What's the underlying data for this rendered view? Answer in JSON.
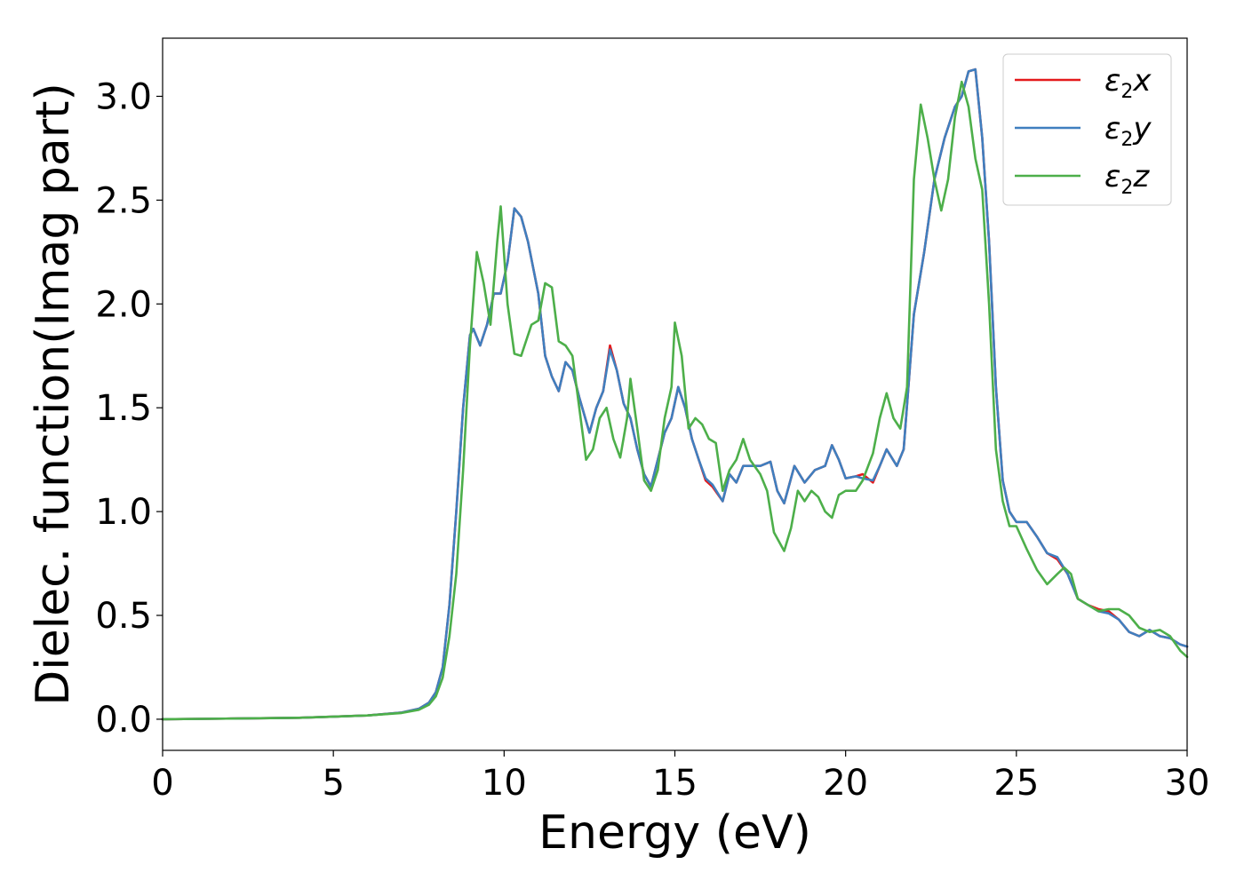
{
  "chart_data": {
    "type": "line",
    "title": "",
    "xlabel": "Energy (eV)",
    "ylabel": "Dielec. function(Imag part)",
    "xlim": [
      0,
      30
    ],
    "ylim": [
      -0.15,
      3.28
    ],
    "xticks": [
      0,
      5,
      10,
      15,
      20,
      25,
      30
    ],
    "xtick_labels": [
      "0",
      "5",
      "10",
      "15",
      "20",
      "25",
      "30"
    ],
    "yticks": [
      0.0,
      0.5,
      1.0,
      1.5,
      2.0,
      2.5,
      3.0
    ],
    "ytick_labels": [
      "0.0",
      "0.5",
      "1.0",
      "1.5",
      "2.0",
      "2.5",
      "3.0"
    ],
    "grid": false,
    "legend_position": "top-right",
    "series": [
      {
        "name": "ε2x",
        "legend_main": "ε",
        "legend_sub": "2",
        "legend_var": "x",
        "color": "#e41a1c",
        "points": [
          [
            0,
            0.0
          ],
          [
            2,
            0.003
          ],
          [
            4,
            0.007
          ],
          [
            6,
            0.018
          ],
          [
            7,
            0.032
          ],
          [
            7.5,
            0.05
          ],
          [
            7.8,
            0.08
          ],
          [
            8.0,
            0.13
          ],
          [
            8.2,
            0.25
          ],
          [
            8.4,
            0.55
          ],
          [
            8.6,
            1.0
          ],
          [
            8.8,
            1.5
          ],
          [
            9.0,
            1.85
          ],
          [
            9.1,
            1.88
          ],
          [
            9.3,
            1.8
          ],
          [
            9.5,
            1.9
          ],
          [
            9.7,
            2.05
          ],
          [
            9.9,
            2.05
          ],
          [
            10.1,
            2.2
          ],
          [
            10.3,
            2.46
          ],
          [
            10.5,
            2.42
          ],
          [
            10.7,
            2.3
          ],
          [
            11.0,
            2.05
          ],
          [
            11.2,
            1.75
          ],
          [
            11.4,
            1.65
          ],
          [
            11.6,
            1.58
          ],
          [
            11.8,
            1.72
          ],
          [
            12.0,
            1.68
          ],
          [
            12.2,
            1.55
          ],
          [
            12.5,
            1.38
          ],
          [
            12.7,
            1.5
          ],
          [
            12.9,
            1.58
          ],
          [
            13.1,
            1.8
          ],
          [
            13.3,
            1.68
          ],
          [
            13.5,
            1.52
          ],
          [
            13.7,
            1.45
          ],
          [
            13.9,
            1.3
          ],
          [
            14.1,
            1.18
          ],
          [
            14.3,
            1.12
          ],
          [
            14.5,
            1.25
          ],
          [
            14.7,
            1.38
          ],
          [
            14.9,
            1.45
          ],
          [
            15.1,
            1.6
          ],
          [
            15.3,
            1.5
          ],
          [
            15.5,
            1.35
          ],
          [
            15.7,
            1.25
          ],
          [
            15.9,
            1.15
          ],
          [
            16.1,
            1.12
          ],
          [
            16.4,
            1.05
          ],
          [
            16.6,
            1.18
          ],
          [
            16.8,
            1.14
          ],
          [
            17.0,
            1.22
          ],
          [
            17.3,
            1.22
          ],
          [
            17.5,
            1.22
          ],
          [
            17.8,
            1.24
          ],
          [
            18.0,
            1.1
          ],
          [
            18.2,
            1.04
          ],
          [
            18.5,
            1.22
          ],
          [
            18.8,
            1.14
          ],
          [
            19.1,
            1.2
          ],
          [
            19.4,
            1.22
          ],
          [
            19.6,
            1.32
          ],
          [
            19.8,
            1.25
          ],
          [
            20.0,
            1.16
          ],
          [
            20.3,
            1.17
          ],
          [
            20.5,
            1.18
          ],
          [
            20.8,
            1.14
          ],
          [
            21.0,
            1.22
          ],
          [
            21.2,
            1.3
          ],
          [
            21.5,
            1.22
          ],
          [
            21.7,
            1.3
          ],
          [
            22.0,
            1.95
          ],
          [
            22.3,
            2.25
          ],
          [
            22.6,
            2.6
          ],
          [
            22.9,
            2.8
          ],
          [
            23.2,
            2.95
          ],
          [
            23.4,
            3.0
          ],
          [
            23.6,
            3.12
          ],
          [
            23.8,
            3.13
          ],
          [
            24.0,
            2.8
          ],
          [
            24.2,
            2.3
          ],
          [
            24.4,
            1.6
          ],
          [
            24.6,
            1.15
          ],
          [
            24.8,
            1.0
          ],
          [
            25.0,
            0.95
          ],
          [
            25.3,
            0.95
          ],
          [
            25.6,
            0.88
          ],
          [
            25.9,
            0.8
          ],
          [
            26.2,
            0.77
          ],
          [
            26.5,
            0.7
          ],
          [
            26.8,
            0.58
          ],
          [
            27.1,
            0.55
          ],
          [
            27.4,
            0.53
          ],
          [
            27.7,
            0.52
          ],
          [
            28.0,
            0.48
          ],
          [
            28.3,
            0.42
          ],
          [
            28.6,
            0.4
          ],
          [
            28.9,
            0.43
          ],
          [
            29.2,
            0.4
          ],
          [
            29.5,
            0.39
          ],
          [
            29.8,
            0.36
          ],
          [
            30,
            0.35
          ]
        ]
      },
      {
        "name": "ε2y",
        "legend_main": "ε",
        "legend_sub": "2",
        "legend_var": "y",
        "color": "#3f7fbf",
        "points": [
          [
            0,
            0.0
          ],
          [
            2,
            0.003
          ],
          [
            4,
            0.007
          ],
          [
            6,
            0.018
          ],
          [
            7,
            0.032
          ],
          [
            7.5,
            0.05
          ],
          [
            7.8,
            0.08
          ],
          [
            8.0,
            0.13
          ],
          [
            8.2,
            0.25
          ],
          [
            8.4,
            0.55
          ],
          [
            8.6,
            1.0
          ],
          [
            8.8,
            1.5
          ],
          [
            9.0,
            1.85
          ],
          [
            9.1,
            1.88
          ],
          [
            9.3,
            1.8
          ],
          [
            9.5,
            1.9
          ],
          [
            9.7,
            2.05
          ],
          [
            9.9,
            2.05
          ],
          [
            10.1,
            2.2
          ],
          [
            10.3,
            2.46
          ],
          [
            10.5,
            2.42
          ],
          [
            10.7,
            2.3
          ],
          [
            11.0,
            2.05
          ],
          [
            11.2,
            1.75
          ],
          [
            11.4,
            1.65
          ],
          [
            11.6,
            1.58
          ],
          [
            11.8,
            1.72
          ],
          [
            12.0,
            1.68
          ],
          [
            12.2,
            1.55
          ],
          [
            12.5,
            1.38
          ],
          [
            12.7,
            1.5
          ],
          [
            12.9,
            1.58
          ],
          [
            13.1,
            1.78
          ],
          [
            13.3,
            1.68
          ],
          [
            13.5,
            1.52
          ],
          [
            13.7,
            1.45
          ],
          [
            13.9,
            1.3
          ],
          [
            14.1,
            1.18
          ],
          [
            14.3,
            1.12
          ],
          [
            14.5,
            1.25
          ],
          [
            14.7,
            1.38
          ],
          [
            14.9,
            1.45
          ],
          [
            15.1,
            1.6
          ],
          [
            15.3,
            1.5
          ],
          [
            15.5,
            1.35
          ],
          [
            15.7,
            1.25
          ],
          [
            15.9,
            1.16
          ],
          [
            16.1,
            1.13
          ],
          [
            16.4,
            1.05
          ],
          [
            16.6,
            1.18
          ],
          [
            16.8,
            1.14
          ],
          [
            17.0,
            1.22
          ],
          [
            17.3,
            1.22
          ],
          [
            17.5,
            1.22
          ],
          [
            17.8,
            1.24
          ],
          [
            18.0,
            1.1
          ],
          [
            18.2,
            1.04
          ],
          [
            18.5,
            1.22
          ],
          [
            18.8,
            1.14
          ],
          [
            19.1,
            1.2
          ],
          [
            19.4,
            1.22
          ],
          [
            19.6,
            1.32
          ],
          [
            19.8,
            1.25
          ],
          [
            20.0,
            1.16
          ],
          [
            20.3,
            1.17
          ],
          [
            20.5,
            1.16
          ],
          [
            20.8,
            1.15
          ],
          [
            21.0,
            1.22
          ],
          [
            21.2,
            1.3
          ],
          [
            21.5,
            1.22
          ],
          [
            21.7,
            1.3
          ],
          [
            22.0,
            1.95
          ],
          [
            22.3,
            2.25
          ],
          [
            22.6,
            2.6
          ],
          [
            22.9,
            2.8
          ],
          [
            23.2,
            2.95
          ],
          [
            23.4,
            3.0
          ],
          [
            23.6,
            3.12
          ],
          [
            23.8,
            3.13
          ],
          [
            24.0,
            2.8
          ],
          [
            24.2,
            2.3
          ],
          [
            24.4,
            1.6
          ],
          [
            24.6,
            1.15
          ],
          [
            24.8,
            1.0
          ],
          [
            25.0,
            0.95
          ],
          [
            25.3,
            0.95
          ],
          [
            25.6,
            0.88
          ],
          [
            25.9,
            0.8
          ],
          [
            26.2,
            0.78
          ],
          [
            26.5,
            0.7
          ],
          [
            26.8,
            0.58
          ],
          [
            27.1,
            0.55
          ],
          [
            27.4,
            0.52
          ],
          [
            27.7,
            0.51
          ],
          [
            28.0,
            0.48
          ],
          [
            28.3,
            0.42
          ],
          [
            28.6,
            0.4
          ],
          [
            28.9,
            0.43
          ],
          [
            29.2,
            0.4
          ],
          [
            29.5,
            0.39
          ],
          [
            29.8,
            0.36
          ],
          [
            30,
            0.35
          ]
        ]
      },
      {
        "name": "ε2z",
        "legend_main": "ε",
        "legend_sub": "2",
        "legend_var": "z",
        "color": "#4daf4a",
        "points": [
          [
            0,
            0.0
          ],
          [
            2,
            0.003
          ],
          [
            4,
            0.007
          ],
          [
            6,
            0.018
          ],
          [
            7,
            0.03
          ],
          [
            7.5,
            0.045
          ],
          [
            7.8,
            0.07
          ],
          [
            8.0,
            0.11
          ],
          [
            8.2,
            0.2
          ],
          [
            8.4,
            0.4
          ],
          [
            8.6,
            0.7
          ],
          [
            8.8,
            1.2
          ],
          [
            9.0,
            1.8
          ],
          [
            9.2,
            2.25
          ],
          [
            9.4,
            2.1
          ],
          [
            9.6,
            1.9
          ],
          [
            9.8,
            2.3
          ],
          [
            9.9,
            2.47
          ],
          [
            10.1,
            2.0
          ],
          [
            10.3,
            1.76
          ],
          [
            10.5,
            1.75
          ],
          [
            10.8,
            1.9
          ],
          [
            11.0,
            1.92
          ],
          [
            11.2,
            2.1
          ],
          [
            11.4,
            2.08
          ],
          [
            11.6,
            1.82
          ],
          [
            11.8,
            1.8
          ],
          [
            12.0,
            1.75
          ],
          [
            12.2,
            1.5
          ],
          [
            12.4,
            1.25
          ],
          [
            12.6,
            1.3
          ],
          [
            12.8,
            1.45
          ],
          [
            13.0,
            1.5
          ],
          [
            13.2,
            1.35
          ],
          [
            13.4,
            1.26
          ],
          [
            13.6,
            1.45
          ],
          [
            13.7,
            1.64
          ],
          [
            13.9,
            1.4
          ],
          [
            14.1,
            1.15
          ],
          [
            14.3,
            1.1
          ],
          [
            14.5,
            1.2
          ],
          [
            14.7,
            1.45
          ],
          [
            14.9,
            1.6
          ],
          [
            15.0,
            1.91
          ],
          [
            15.2,
            1.75
          ],
          [
            15.4,
            1.4
          ],
          [
            15.6,
            1.45
          ],
          [
            15.8,
            1.42
          ],
          [
            16.0,
            1.35
          ],
          [
            16.2,
            1.33
          ],
          [
            16.4,
            1.1
          ],
          [
            16.6,
            1.2
          ],
          [
            16.8,
            1.25
          ],
          [
            17.0,
            1.35
          ],
          [
            17.2,
            1.25
          ],
          [
            17.5,
            1.18
          ],
          [
            17.7,
            1.1
          ],
          [
            17.9,
            0.9
          ],
          [
            18.2,
            0.81
          ],
          [
            18.4,
            0.92
          ],
          [
            18.6,
            1.1
          ],
          [
            18.8,
            1.05
          ],
          [
            19.0,
            1.1
          ],
          [
            19.2,
            1.07
          ],
          [
            19.4,
            1.0
          ],
          [
            19.6,
            0.97
          ],
          [
            19.8,
            1.08
          ],
          [
            20.0,
            1.1
          ],
          [
            20.3,
            1.1
          ],
          [
            20.5,
            1.15
          ],
          [
            20.8,
            1.28
          ],
          [
            21.0,
            1.45
          ],
          [
            21.2,
            1.57
          ],
          [
            21.4,
            1.45
          ],
          [
            21.6,
            1.4
          ],
          [
            21.8,
            1.6
          ],
          [
            22.0,
            2.6
          ],
          [
            22.2,
            2.96
          ],
          [
            22.4,
            2.8
          ],
          [
            22.6,
            2.6
          ],
          [
            22.8,
            2.45
          ],
          [
            23.0,
            2.6
          ],
          [
            23.2,
            2.9
          ],
          [
            23.4,
            3.07
          ],
          [
            23.6,
            2.95
          ],
          [
            23.8,
            2.7
          ],
          [
            24.0,
            2.55
          ],
          [
            24.2,
            2.0
          ],
          [
            24.4,
            1.3
          ],
          [
            24.6,
            1.05
          ],
          [
            24.8,
            0.93
          ],
          [
            25.0,
            0.93
          ],
          [
            25.3,
            0.82
          ],
          [
            25.6,
            0.72
          ],
          [
            25.9,
            0.65
          ],
          [
            26.2,
            0.7
          ],
          [
            26.4,
            0.73
          ],
          [
            26.6,
            0.7
          ],
          [
            26.8,
            0.58
          ],
          [
            27.1,
            0.55
          ],
          [
            27.4,
            0.52
          ],
          [
            27.7,
            0.53
          ],
          [
            28.0,
            0.53
          ],
          [
            28.3,
            0.5
          ],
          [
            28.6,
            0.44
          ],
          [
            28.9,
            0.42
          ],
          [
            29.2,
            0.43
          ],
          [
            29.5,
            0.4
          ],
          [
            29.8,
            0.33
          ],
          [
            30,
            0.3
          ]
        ]
      }
    ]
  }
}
